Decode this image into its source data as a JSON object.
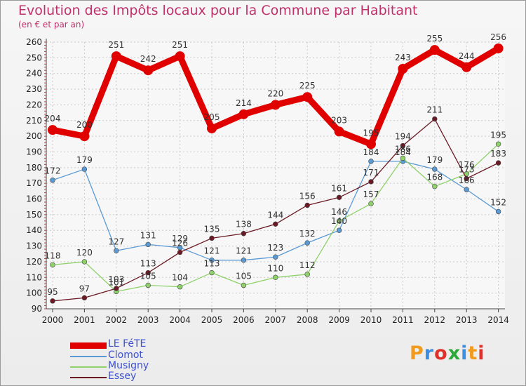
{
  "title": "Evolution des Impôts locaux pour la Commune par Habitant",
  "subtitle": "(en € et par an)",
  "logo": "Proxiti",
  "chart_data": {
    "type": "line",
    "title": "Evolution des Impôts locaux pour la Commune par Habitant",
    "subtitle": "(en € et par an)",
    "xlabel": "",
    "ylabel": "",
    "x": [
      "2000",
      "2001",
      "2002",
      "2003",
      "2004",
      "2005",
      "2006",
      "2007",
      "2008",
      "2009",
      "2010",
      "2011",
      "2012",
      "2013",
      "2014"
    ],
    "ylim": [
      90,
      260
    ],
    "yticks": [
      90,
      100,
      110,
      120,
      130,
      140,
      150,
      160,
      170,
      180,
      190,
      200,
      210,
      220,
      230,
      240,
      250,
      260
    ],
    "grid": true,
    "legend_position": "bottom-left",
    "series": [
      {
        "name": "LE FéTE",
        "color": "#e00000",
        "values": [
          204,
          200,
          251,
          242,
          251,
          205,
          214,
          220,
          225,
          203,
          195,
          243,
          255,
          244,
          256
        ]
      },
      {
        "name": "Clomot",
        "color": "#5b9bd5",
        "values": [
          172,
          179,
          127,
          131,
          129,
          121,
          121,
          123,
          132,
          140,
          184,
          184,
          179,
          166,
          152
        ]
      },
      {
        "name": "Musigny",
        "color": "#8fd16a",
        "values": [
          118,
          120,
          101,
          105,
          104,
          113,
          105,
          110,
          112,
          146,
          157,
          186,
          168,
          176,
          195
        ]
      },
      {
        "name": "Essey",
        "color": "#6b1a25",
        "values": [
          95,
          97,
          103,
          113,
          126,
          135,
          138,
          144,
          156,
          161,
          171,
          194,
          211,
          173,
          183
        ]
      }
    ]
  }
}
